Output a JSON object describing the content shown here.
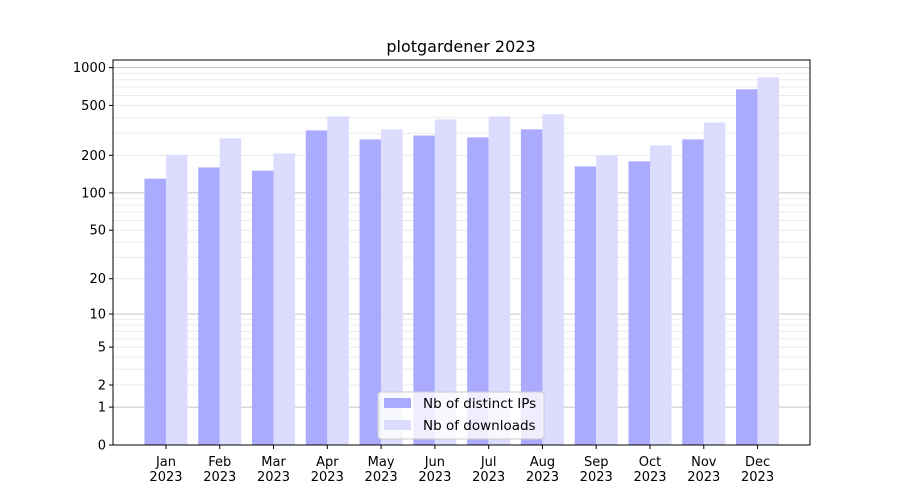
{
  "chart_data": {
    "type": "bar",
    "title": "plotgardener 2023",
    "xlabel": "",
    "ylabel": "",
    "y_scale": "log10(1+y)",
    "ylim": [
      0,
      1150
    ],
    "y_ticks": [
      0,
      1,
      2,
      5,
      10,
      20,
      50,
      100,
      200,
      500,
      1000
    ],
    "grid": true,
    "legend_position": "bottom-center",
    "categories": [
      "Jan\n2023",
      "Feb\n2023",
      "Mar\n2023",
      "Apr\n2023",
      "May\n2023",
      "Jun\n2023",
      "Jul\n2023",
      "Aug\n2023",
      "Sep\n2023",
      "Oct\n2023",
      "Nov\n2023",
      "Dec\n2023"
    ],
    "series": [
      {
        "name": "Nb of distinct IPs",
        "color": "#aaaaff",
        "values": [
          130,
          160,
          151,
          316,
          268,
          288,
          278,
          322,
          163,
          179,
          268,
          672
        ]
      },
      {
        "name": "Nb of downloads",
        "color": "#dcdcff",
        "values": [
          202,
          273,
          207,
          409,
          322,
          387,
          409,
          425,
          199,
          240,
          366,
          837
        ]
      }
    ]
  }
}
